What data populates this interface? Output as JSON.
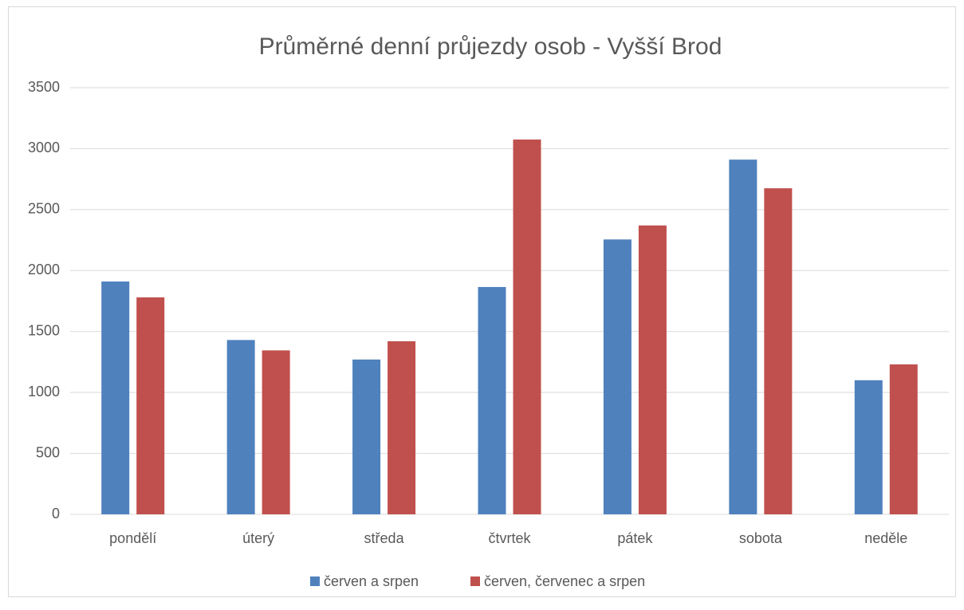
{
  "chart_data": {
    "type": "bar",
    "title": "Průměrné denní průjezdy osob - Vyšší Brod",
    "categories": [
      "pondělí",
      "úterý",
      "středa",
      "čtvrtek",
      "pátek",
      "sobota",
      "neděle"
    ],
    "series": [
      {
        "name": "červen a srpen",
        "color": "#4f81bd",
        "values": [
          1910,
          1430,
          1270,
          1865,
          2255,
          2910,
          1100
        ]
      },
      {
        "name": "červen, červenec a srpen",
        "color": "#c0504d",
        "values": [
          1780,
          1345,
          1420,
          3075,
          2370,
          2675,
          1230
        ]
      }
    ],
    "ylim": [
      0,
      3500
    ],
    "yticks": [
      0,
      500,
      1000,
      1500,
      2000,
      2500,
      3000,
      3500
    ],
    "grid": true,
    "legend": "bottom"
  }
}
